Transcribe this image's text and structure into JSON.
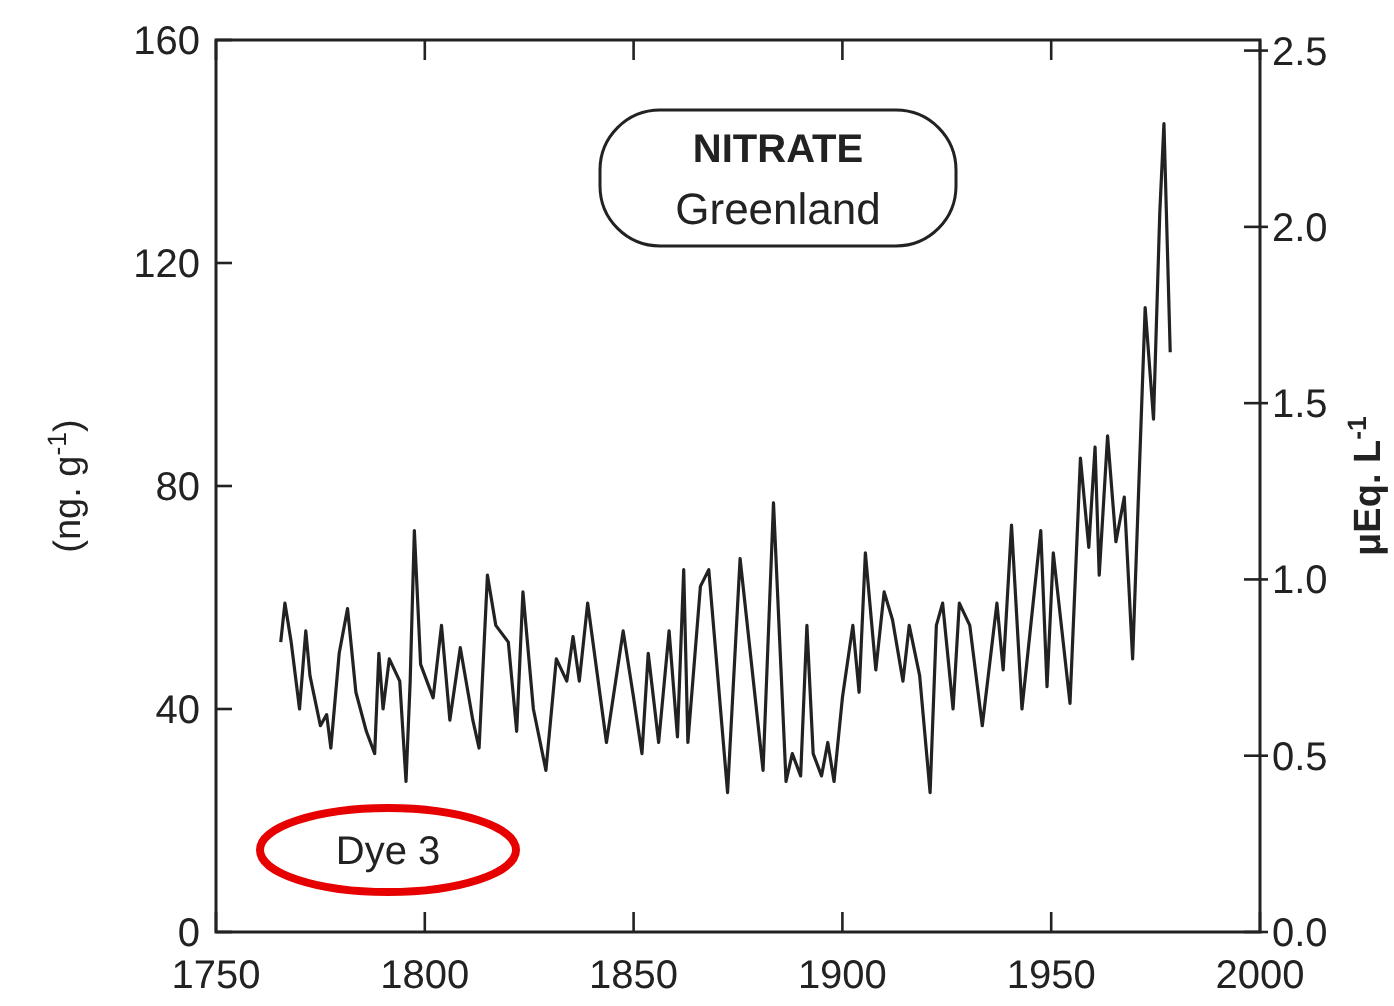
{
  "chart_data": {
    "type": "line",
    "title": "NITRATE",
    "subtitle": "Greenland",
    "ylabel": "(ng. g$^{-1}$)",
    "y2label": "μEq. L$^{-1}$",
    "annotations": [
      "Dye 3"
    ],
    "xlim": [
      1750,
      2000
    ],
    "xticks": [
      1750,
      1800,
      1850,
      1900,
      1950,
      2000
    ],
    "ylim": [
      0,
      160
    ],
    "yticks": [
      0,
      40,
      80,
      120,
      160
    ],
    "y2lim": [
      0,
      2.53
    ],
    "y2ticks": [
      {
        "value": 0,
        "label": "0.0"
      },
      {
        "value": 0.5,
        "label": "0.5"
      },
      {
        "value": 1,
        "label": "1.0"
      },
      {
        "value": 1.5,
        "label": "1.5"
      },
      {
        "value": 2,
        "label": "2.0"
      },
      {
        "value": 2.5,
        "label": "2.5"
      }
    ],
    "grid": false,
    "series": [
      {
        "color": "#222222",
        "x": [
          1765.5,
          1766.5,
          1768,
          1770,
          1771.5,
          1772.5,
          1775,
          1776.5,
          1777.5,
          1779.5,
          1781.5,
          1783.5,
          1786,
          1788,
          1789,
          1790,
          1791.5,
          1794,
          1795.5,
          1796.5,
          1797.5,
          1799,
          1802,
          1804,
          1806,
          1808.5,
          1811.5,
          1813,
          1815,
          1817,
          1820,
          1822,
          1823.5,
          1826,
          1829,
          1831.5,
          1834,
          1835.5,
          1837,
          1839,
          1843.5,
          1847.5,
          1850,
          1852,
          1853.5,
          1856,
          1858.5,
          1860.5,
          1862,
          1863,
          1866,
          1868,
          1872.5,
          1875.5,
          1881,
          1883.5,
          1886.5,
          1888,
          1890,
          1891.5,
          1893,
          1895,
          1896.5,
          1898,
          1900,
          1902.5,
          1904,
          1905.5,
          1908,
          1910,
          1912,
          1914.5,
          1916,
          1918.5,
          1921,
          1922.5,
          1924,
          1926.5,
          1928,
          1930.5,
          1933.5,
          1937,
          1938.5,
          1940.5,
          1943,
          1947.5,
          1949,
          1950.5,
          1954.5,
          1957,
          1959,
          1960.5,
          1961.5,
          1963.5,
          1965.5,
          1967.5,
          1969.5,
          1972.5,
          1974.5,
          1976,
          1977,
          1978.5
        ],
        "values": [
          52,
          59,
          52,
          40,
          54,
          46,
          37,
          39,
          33,
          50,
          58,
          43,
          36,
          32,
          50,
          40,
          49,
          45,
          27,
          45,
          72,
          48,
          42,
          55,
          38,
          51,
          38,
          33,
          64,
          55,
          52,
          36,
          61,
          40,
          29,
          49,
          45,
          53,
          45,
          59,
          34,
          54,
          42,
          32,
          50,
          34,
          54,
          35,
          65,
          34,
          62,
          65,
          25,
          67,
          29,
          77,
          27,
          32,
          28,
          55,
          32,
          28,
          34,
          27,
          42,
          55,
          43,
          68,
          47,
          61,
          56,
          45,
          55,
          46,
          25,
          55,
          59,
          40,
          59,
          55,
          37,
          59,
          47,
          73,
          40,
          72,
          44,
          68,
          41,
          85,
          69,
          87,
          64,
          89,
          70,
          78,
          49,
          112,
          92,
          129,
          145,
          104
        ]
      }
    ]
  }
}
